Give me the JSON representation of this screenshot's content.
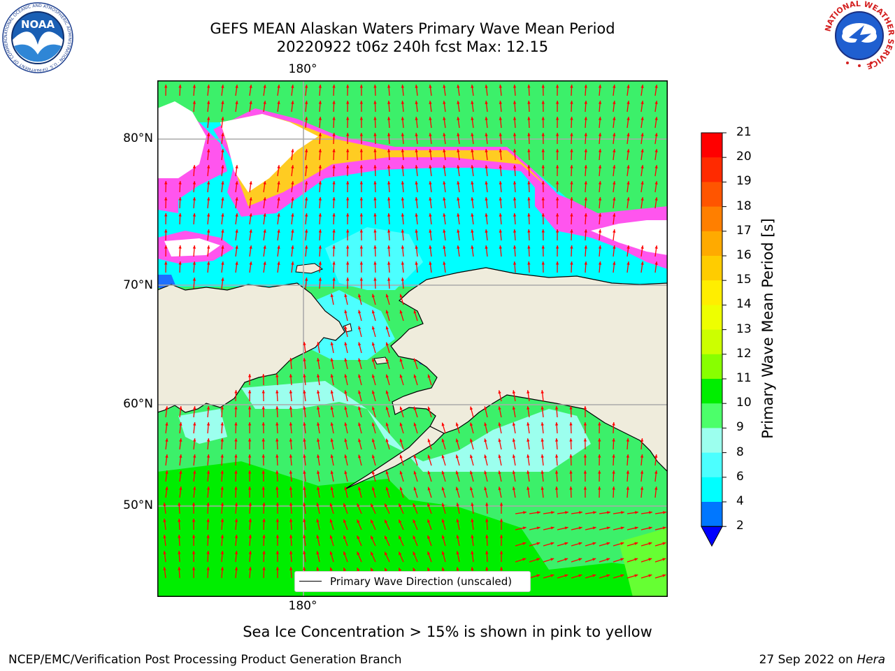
{
  "header": {
    "title_line1": "GEFS MEAN Alaskan Waters Primary Wave Mean Period",
    "title_line2": "20220922 t06z 240h fcst   Max: 12.15"
  },
  "logos": {
    "noaa_text": "NOAA",
    "noaa_ring_text": "NATIONAL OCEANIC AND ATMOSPHERIC ADMINISTRATION · U.S. DEPARTMENT OF COMMERCE",
    "nws_ring_text": "NATIONAL WEATHER SERVICE"
  },
  "map": {
    "lon_label_top": "180°",
    "lon_label_bottom": "180°",
    "lat_labels": [
      "80°N",
      "70°N",
      "60°N",
      "50°N"
    ],
    "legend_label": "Primary Wave Direction (unscaled)"
  },
  "colorbar": {
    "title": "Primary Wave Mean Period [s]",
    "ticks": [
      "21",
      "20",
      "19",
      "18",
      "17",
      "16",
      "15",
      "14",
      "13",
      "12",
      "11",
      "10",
      "9",
      "8",
      "6",
      "4",
      "2"
    ],
    "colors": [
      "#ff0000",
      "#ff2a00",
      "#ff5500",
      "#ff7f00",
      "#ffaa00",
      "#ffcc00",
      "#ffee00",
      "#eeff00",
      "#ccff00",
      "#88ff00",
      "#00ee00",
      "#4cff6a",
      "#9cffee",
      "#4cffff",
      "#00ffff",
      "#0077ff",
      "#0000ff"
    ]
  },
  "footer": {
    "note": "Sea Ice Concentration > 15% is shown in pink to yellow",
    "credit": "NCEP/EMC/Verification Post Processing Product Generation Branch",
    "date": "27 Sep 2022 on ",
    "machine": "Hera"
  }
}
